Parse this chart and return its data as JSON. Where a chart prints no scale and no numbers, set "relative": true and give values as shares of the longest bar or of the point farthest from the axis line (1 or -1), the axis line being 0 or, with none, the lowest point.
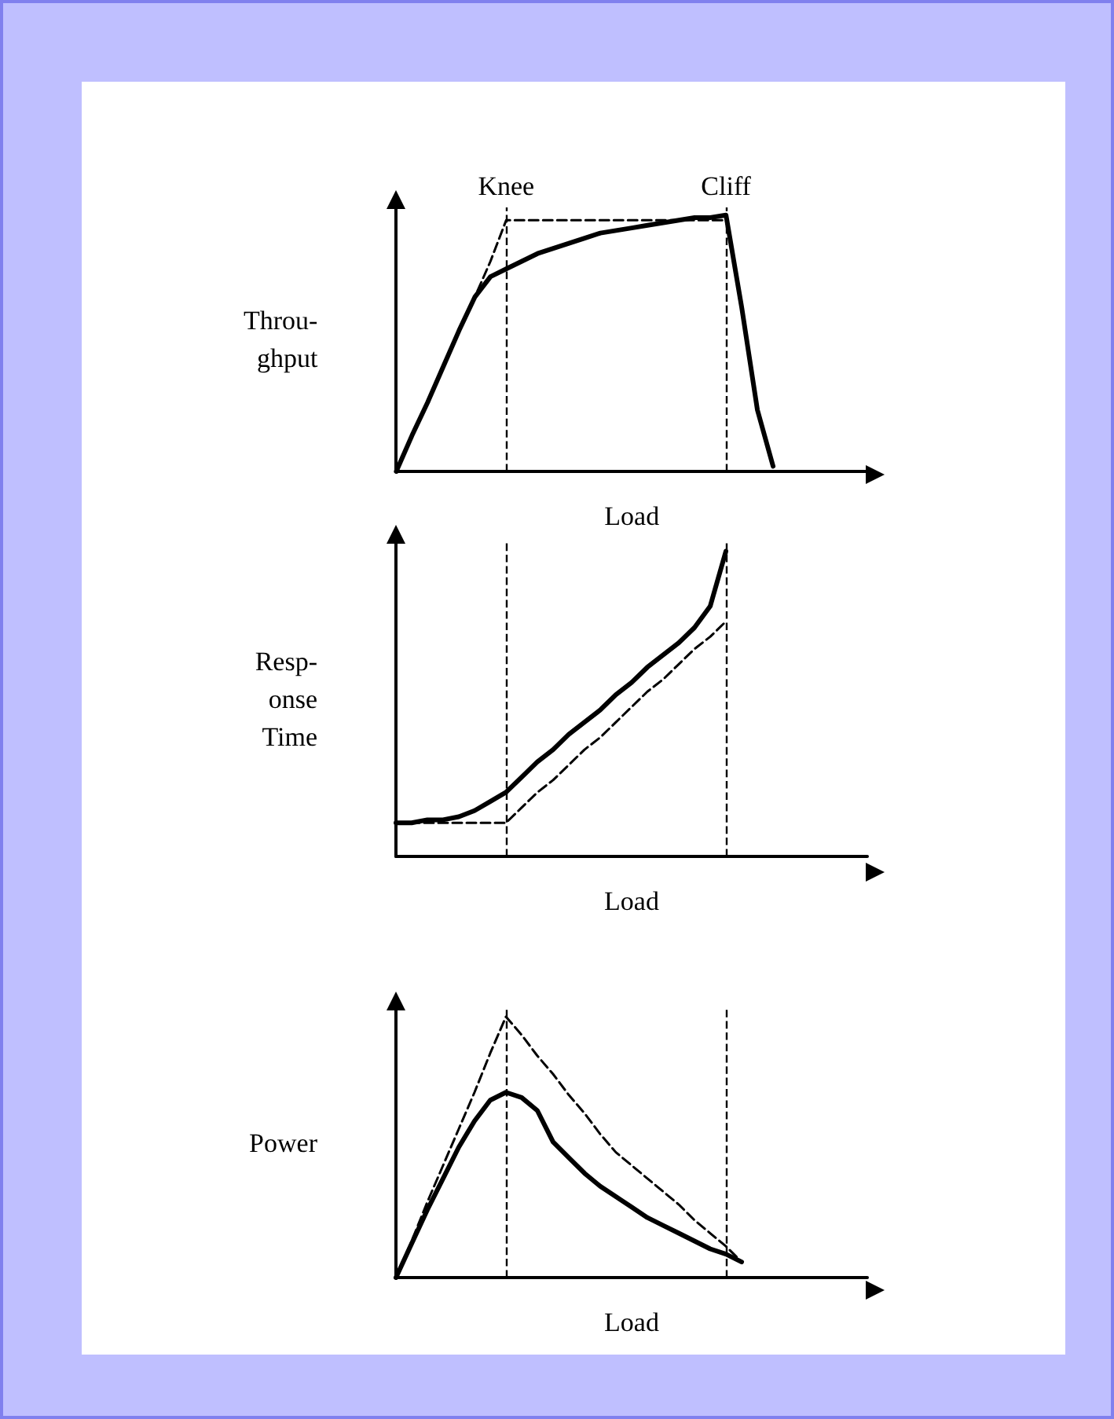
{
  "chart_data": [
    {
      "type": "line",
      "relative": true,
      "ylabel": "Throu-\nghput",
      "xlabel": "Load",
      "categories": [
        null,
        null,
        null,
        null,
        null,
        null,
        null,
        null,
        null,
        null,
        null,
        null,
        null,
        null,
        null,
        null,
        null,
        null,
        null,
        null,
        null,
        null,
        null,
        null,
        null,
        null,
        null,
        null,
        null,
        null,
        null
      ],
      "series": [
        {
          "color": "#000000",
          "line_style": "solid",
          "values": [
            0,
            0.14,
            0.27,
            0.41,
            0.55,
            0.68,
            0.76,
            0.79,
            0.82,
            0.85,
            0.87,
            0.89,
            0.91,
            0.93,
            0.94,
            0.95,
            0.96,
            0.97,
            0.98,
            0.99,
            0.99,
            1,
            0.64,
            0.24,
            0.02,
            null,
            null,
            null,
            null,
            null,
            null
          ]
        },
        {
          "color": "#000000",
          "line_style": "dashed",
          "values": [
            0,
            0.14,
            0.27,
            0.41,
            0.55,
            0.68,
            0.82,
            0.98,
            0.98,
            0.98,
            0.98,
            0.98,
            0.98,
            0.98,
            0.98,
            0.98,
            0.98,
            0.98,
            0.98,
            0.98,
            0.98,
            0.98,
            0.64,
            0.24,
            0.02,
            null,
            null,
            null,
            null,
            null,
            null
          ]
        }
      ],
      "annotations": [
        "Knee",
        "Cliff"
      ],
      "marker": "none",
      "grid": false
    },
    {
      "type": "line",
      "relative": true,
      "ylabel": "Resp-\nonse\nTime",
      "xlabel": "Load",
      "categories": [
        null,
        null,
        null,
        null,
        null,
        null,
        null,
        null,
        null,
        null,
        null,
        null,
        null,
        null,
        null,
        null,
        null,
        null,
        null,
        null,
        null,
        null,
        null,
        null,
        null,
        null,
        null,
        null,
        null,
        null,
        null
      ],
      "series": [
        {
          "color": "#000000",
          "line_style": "solid",
          "values": [
            0.11,
            0.11,
            0.12,
            0.12,
            0.13,
            0.15,
            0.18,
            0.21,
            0.26,
            0.31,
            0.35,
            0.4,
            0.44,
            0.48,
            0.53,
            0.57,
            0.62,
            0.66,
            0.7,
            0.75,
            0.82,
            1,
            null,
            null,
            null,
            null,
            null,
            null,
            null,
            null,
            null
          ]
        },
        {
          "color": "#000000",
          "line_style": "dashed",
          "values": [
            0.11,
            0.11,
            0.11,
            0.11,
            0.11,
            0.11,
            0.11,
            0.11,
            0.16,
            0.21,
            0.25,
            0.3,
            0.35,
            0.39,
            0.44,
            0.49,
            0.54,
            0.58,
            0.63,
            0.68,
            0.72,
            0.77,
            null,
            null,
            null,
            null,
            null,
            null,
            null,
            null,
            null
          ]
        }
      ],
      "marker": "none",
      "grid": false
    },
    {
      "type": "line",
      "relative": true,
      "ylabel": "Power",
      "xlabel": "Load",
      "categories": [
        null,
        null,
        null,
        null,
        null,
        null,
        null,
        null,
        null,
        null,
        null,
        null,
        null,
        null,
        null,
        null,
        null,
        null,
        null,
        null,
        null,
        null,
        null,
        null,
        null,
        null,
        null,
        null,
        null,
        null,
        null
      ],
      "series": [
        {
          "color": "#000000",
          "line_style": "solid",
          "values": [
            0,
            0.13,
            0.26,
            0.38,
            0.5,
            0.6,
            0.68,
            0.71,
            0.69,
            0.64,
            0.52,
            0.46,
            0.4,
            0.35,
            0.31,
            0.27,
            0.23,
            0.2,
            0.17,
            0.14,
            0.11,
            0.09,
            0.06,
            null,
            null,
            null,
            null,
            null,
            null,
            null,
            null
          ]
        },
        {
          "color": "#000000",
          "line_style": "dashed",
          "values": [
            0,
            0.14,
            0.29,
            0.43,
            0.57,
            0.71,
            0.86,
            1,
            0.93,
            0.85,
            0.78,
            0.7,
            0.63,
            0.55,
            0.48,
            0.43,
            0.38,
            0.33,
            0.28,
            0.22,
            0.17,
            0.12,
            0.06,
            null,
            null,
            null,
            null,
            null,
            null,
            null,
            null
          ]
        }
      ],
      "marker": "none",
      "grid": false
    }
  ]
}
